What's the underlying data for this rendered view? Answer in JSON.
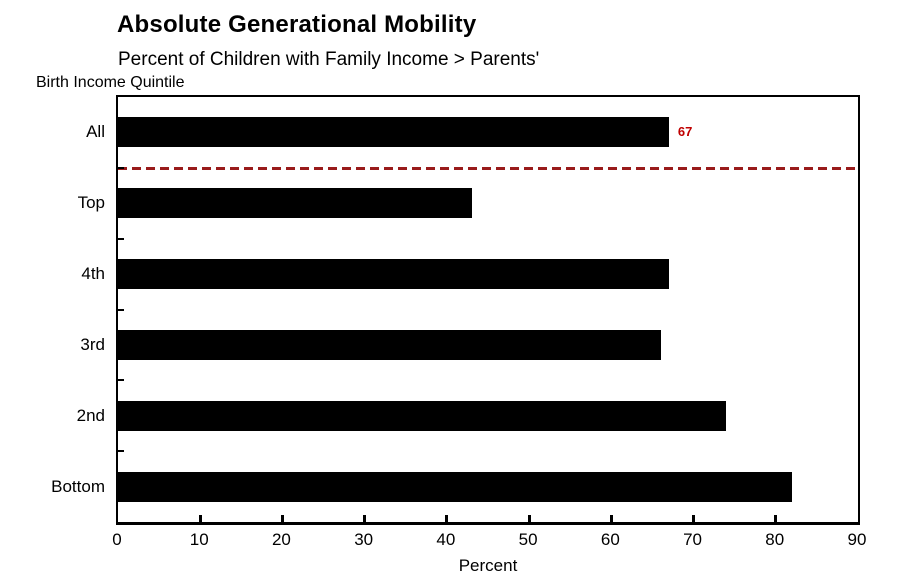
{
  "chart_data": {
    "type": "bar",
    "orientation": "horizontal",
    "title": "Absolute Generational Mobility",
    "subtitle": "Percent of Children with Family Income > Parents'",
    "ylabel": "Birth Income Quintile",
    "xlabel": "Percent",
    "categories": [
      "All",
      "Top",
      "4th",
      "3rd",
      "2nd",
      "Bottom"
    ],
    "values": [
      67,
      43,
      67,
      66,
      74,
      82
    ],
    "xlim": [
      0,
      90
    ],
    "xticks": [
      0,
      10,
      20,
      30,
      40,
      50,
      60,
      70,
      80,
      90
    ],
    "grid": false,
    "legend": false,
    "bar_color": "#000000",
    "axis_color": "#000000",
    "value_label": {
      "category": "All",
      "text": "67",
      "color": "#c00000"
    },
    "reference_line": {
      "after_category": "All",
      "style": "dashed",
      "color": "#991b1b",
      "spans": "full-plot-width"
    }
  }
}
